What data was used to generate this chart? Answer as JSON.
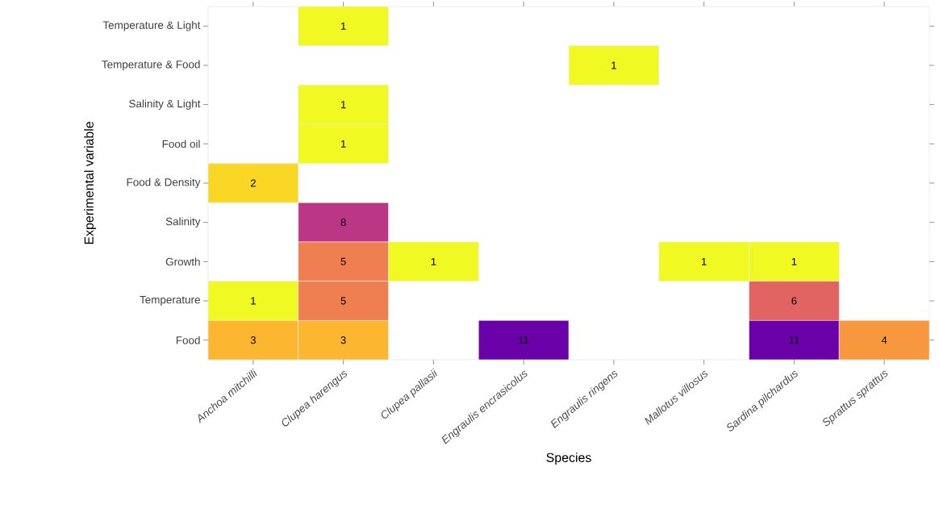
{
  "chart_data": {
    "type": "heatmap",
    "xlabel": "Species",
    "ylabel": "Experimental variable",
    "data_labels": true,
    "categories": [
      "Anchoa mitchilli",
      "Clupea harengus",
      "Clupea pallasii",
      "Engraulis encrasicolus",
      "Engraulis ringens",
      "Mallotus villosus",
      "Sardina pilchardus",
      "Sprattus sprattus"
    ],
    "y_categories": [
      "Temperature & Light",
      "Temperature & Food",
      "Salinity & Light",
      "Food oil",
      "Food & Density",
      "Salinity",
      "Growth",
      "Temperature",
      "Food"
    ],
    "cells": [
      [
        null,
        1,
        null,
        null,
        null,
        null,
        null,
        null
      ],
      [
        null,
        null,
        null,
        null,
        1,
        null,
        null,
        null
      ],
      [
        null,
        1,
        null,
        null,
        null,
        null,
        null,
        null
      ],
      [
        null,
        1,
        null,
        null,
        null,
        null,
        null,
        null
      ],
      [
        2,
        null,
        null,
        null,
        null,
        null,
        null,
        null
      ],
      [
        null,
        8,
        null,
        null,
        null,
        null,
        null,
        null
      ],
      [
        null,
        5,
        1,
        null,
        null,
        1,
        1,
        null
      ],
      [
        1,
        5,
        null,
        null,
        null,
        null,
        6,
        null
      ],
      [
        3,
        3,
        null,
        11,
        null,
        null,
        11,
        4
      ]
    ]
  }
}
